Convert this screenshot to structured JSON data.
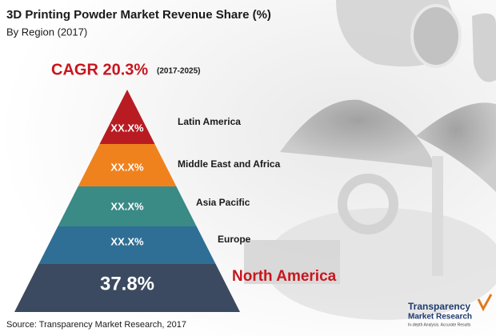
{
  "header": {
    "title": "3D Printing Powder Market Revenue Share (%)",
    "subtitle": "By Region (2017)"
  },
  "cagr": {
    "value": "CAGR 20.3%",
    "period": "(2017-2025)"
  },
  "layers": [
    {
      "label": "Latin America",
      "value": "XX.X%"
    },
    {
      "label": "Middle East and Africa",
      "value": "XX.X%"
    },
    {
      "label": "Asia Pacific",
      "value": "XX.X%"
    },
    {
      "label": "Europe",
      "value": "XX.X%"
    },
    {
      "label": "North America",
      "value": "37.8%"
    }
  ],
  "source": "Source: Transparency Market Research, 2017",
  "logo": {
    "name": "Transparency",
    "name2": "Market Research",
    "tagline": "In-depth Analysis. Accurate Results"
  }
}
